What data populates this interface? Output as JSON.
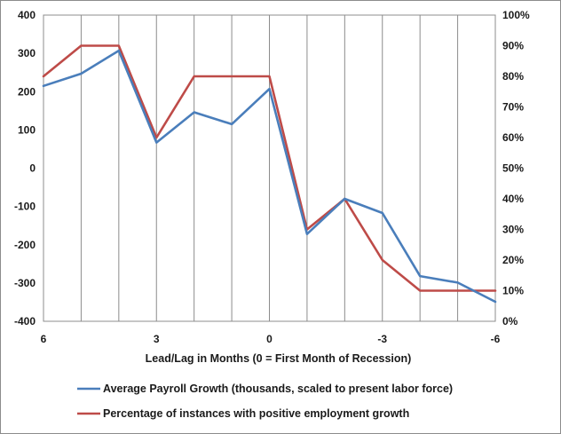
{
  "chart_data": {
    "type": "line",
    "title": "",
    "xlabel": "Lead/Lag in Months (0 = First Month of Recession)",
    "ylabel": "",
    "x": [
      6,
      5,
      4,
      3,
      2,
      1,
      0,
      -1,
      -2,
      -3,
      -4,
      -5,
      -6
    ],
    "x_tick_labels": [
      "6",
      "3",
      "0",
      "-3",
      "-6"
    ],
    "x_tick_values": [
      6,
      3,
      0,
      -3,
      -6
    ],
    "xlim": [
      6,
      -6
    ],
    "ylim": [
      -400,
      400
    ],
    "y_ticks": [
      -400,
      -300,
      -200,
      -100,
      0,
      100,
      200,
      300,
      400
    ],
    "y2lim": [
      0,
      100
    ],
    "y2_tick_labels": [
      "0%",
      "10%",
      "20%",
      "30%",
      "40%",
      "50%",
      "60%",
      "70%",
      "80%",
      "90%",
      "100%"
    ],
    "grid": "vertical",
    "legend_position": "bottom",
    "series": [
      {
        "name": "Average Payroll Growth (thousands, scaled to present labor force)",
        "axis": "left",
        "color": "#4a7ebb",
        "values": [
          215,
          247,
          307,
          67,
          146,
          115,
          207,
          -172,
          -80,
          -117,
          -282,
          -299,
          -349
        ]
      },
      {
        "name": "Percentage of instances with positive employment growth",
        "axis": "right",
        "color": "#be4b48",
        "values": [
          80,
          90,
          90,
          60,
          80,
          80,
          80,
          30,
          40,
          20,
          10,
          10,
          10
        ]
      }
    ]
  }
}
